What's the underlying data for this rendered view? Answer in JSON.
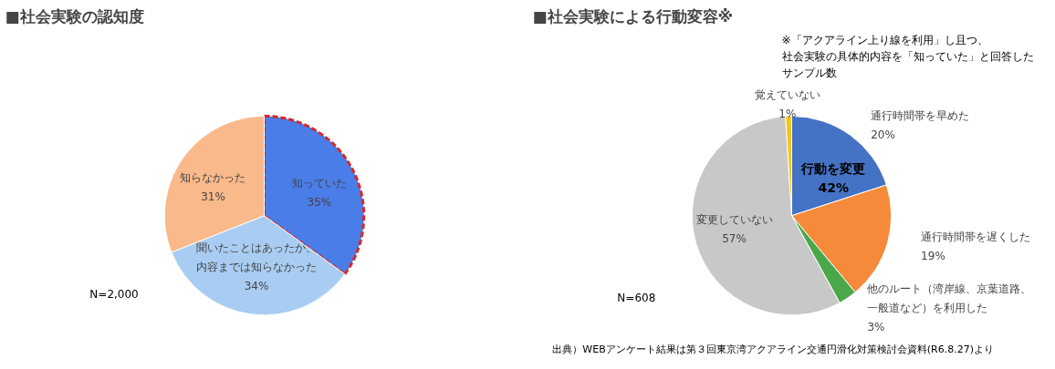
{
  "chart_data": [
    {
      "type": "pie",
      "title": "■社会実験の認知度",
      "categories": [
        "知っていた",
        "聞いたことはあったが、内容までは知らなかった",
        "知らなかった"
      ],
      "values": [
        35,
        34,
        31
      ],
      "colors": [
        "#4a7de8",
        "#a9cdf2",
        "#f9b98a"
      ],
      "value_labels": [
        "35%",
        "34%",
        "31%"
      ],
      "annotations": [
        "N=2,000"
      ]
    },
    {
      "type": "pie",
      "title": "■社会実験による行動変容※",
      "categories": [
        "通行時間帯を早めた",
        "通行時間帯を遅くした",
        "他のルート（湾岸線、京葉道路、一般道など）を利用した",
        "変更していない",
        "覚えていない"
      ],
      "values": [
        20,
        19,
        3,
        57,
        1
      ],
      "colors": [
        "#4472c4",
        "#f58b3a",
        "#4aa84a",
        "#c8c8c8",
        "#f5c518"
      ],
      "value_labels": [
        "20%",
        "19%",
        "3%",
        "57%",
        "1%"
      ],
      "annotations": [
        "行動を変更\n42%",
        "N=608",
        "※「アクアライン上り線を利用」し且つ、社会実験の具体的内容を「知っていた」と回答したサンプル数",
        "出典）WEBアンケート結果は第３回東京湾アクアライン交通円滑化対策検討会資料(R6.8.27)より"
      ]
    }
  ]
}
